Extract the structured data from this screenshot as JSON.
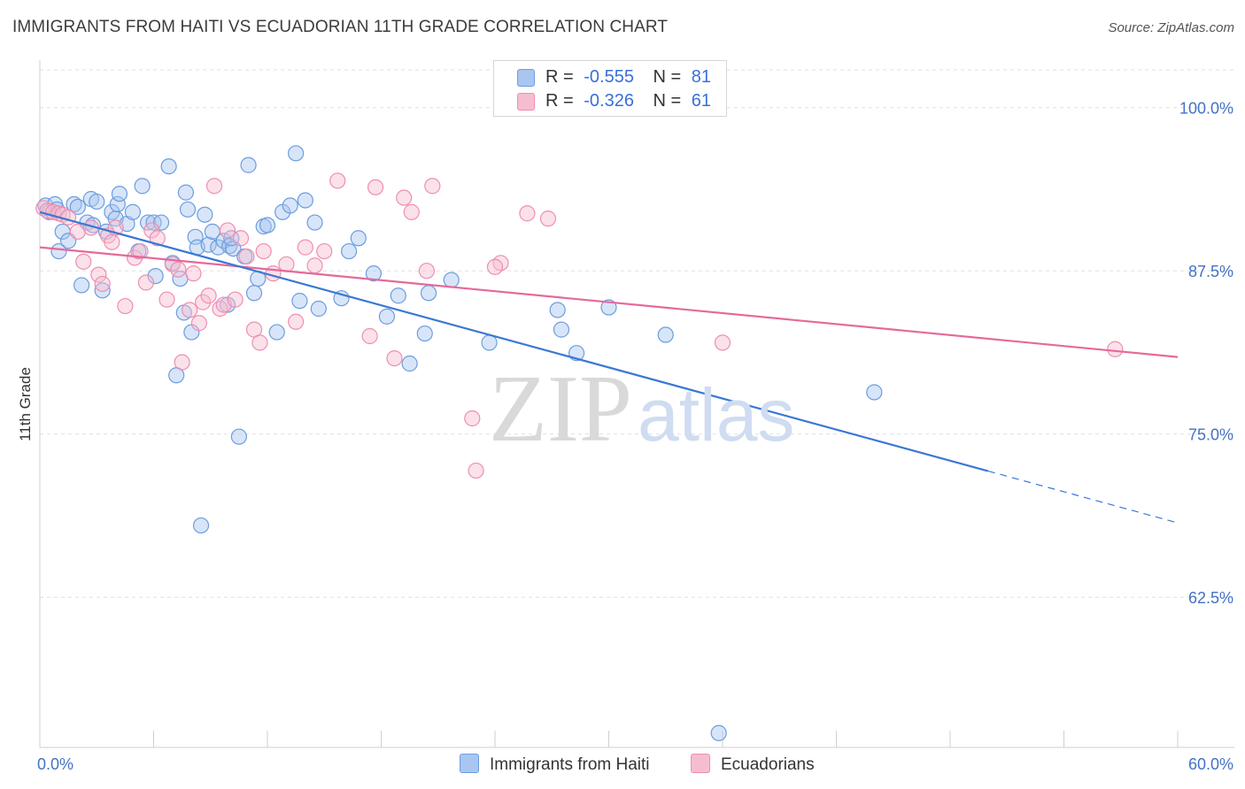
{
  "header": {
    "title": "IMMIGRANTS FROM HAITI VS ECUADORIAN 11TH GRADE CORRELATION CHART",
    "source": "Source: ZipAtlas.com"
  },
  "watermark": {
    "zip": "ZIP",
    "atlas": "atlas"
  },
  "legend": {
    "rows": [
      {
        "r_label": "R =",
        "r_value": "-0.555",
        "n_label": "N =",
        "n_value": "81"
      },
      {
        "r_label": "R =",
        "r_value": "-0.326",
        "n_label": "N =",
        "n_value": "61"
      }
    ]
  },
  "bottom_legend": {
    "haiti": "Immigrants from Haiti",
    "ecuador": "Ecuadorians"
  },
  "colors": {
    "haiti_fill": "#a9c6f0",
    "haiti_stroke": "#6b9de0",
    "haiti_line": "#3a78d4",
    "ecuador_fill": "#f6bdd1",
    "ecuador_stroke": "#ee8fb0",
    "ecuador_line": "#e5699a",
    "grid": "#e0e0e0",
    "axis_text": "#4472c4"
  },
  "chart_data": {
    "type": "scatter",
    "title": "IMMIGRANTS FROM HAITI VS ECUADORIAN 11TH GRADE CORRELATION CHART",
    "xlabel": "",
    "ylabel": "11th Grade",
    "xlim": [
      0,
      60
    ],
    "ylim": [
      51,
      103.5
    ],
    "x_tick_labels": [
      {
        "value": 0,
        "label": "0.0%"
      },
      {
        "value": 60,
        "label": "60.0%"
      }
    ],
    "y_tick_labels": [
      {
        "value": 100,
        "label": "100.0%"
      },
      {
        "value": 87.5,
        "label": "87.5%"
      },
      {
        "value": 75,
        "label": "75.0%"
      },
      {
        "value": 62.5,
        "label": "62.5%"
      }
    ],
    "y_gridlines": [
      100,
      87.5,
      75,
      62.5
    ],
    "x_minor_ticks": [
      0,
      6,
      12,
      18,
      24,
      30,
      36,
      42,
      48,
      54,
      60
    ],
    "series": [
      {
        "name": "Immigrants from Haiti",
        "R": -0.555,
        "N": 81,
        "trend": {
          "x0": 0,
          "y0": 92.0,
          "x1": 60,
          "y1": 68.2,
          "solid_until_x": 50
        },
        "points": [
          [
            0.3,
            92.5
          ],
          [
            0.5,
            92.0
          ],
          [
            0.8,
            92.6
          ],
          [
            0.9,
            92.2
          ],
          [
            1.0,
            89.0
          ],
          [
            1.2,
            90.5
          ],
          [
            1.5,
            89.8
          ],
          [
            1.8,
            92.6
          ],
          [
            2.0,
            92.4
          ],
          [
            2.2,
            86.4
          ],
          [
            2.5,
            91.2
          ],
          [
            2.7,
            93.0
          ],
          [
            2.8,
            91.0
          ],
          [
            3.0,
            92.8
          ],
          [
            3.3,
            86.0
          ],
          [
            3.5,
            90.5
          ],
          [
            3.8,
            92.0
          ],
          [
            4.0,
            91.5
          ],
          [
            4.1,
            92.6
          ],
          [
            4.2,
            93.4
          ],
          [
            4.6,
            91.1
          ],
          [
            4.9,
            92.0
          ],
          [
            5.2,
            89.0
          ],
          [
            5.4,
            94.0
          ],
          [
            5.7,
            91.2
          ],
          [
            6.0,
            91.2
          ],
          [
            6.1,
            87.1
          ],
          [
            6.4,
            91.2
          ],
          [
            6.8,
            95.5
          ],
          [
            7.0,
            88.1
          ],
          [
            7.2,
            79.5
          ],
          [
            7.4,
            86.9
          ],
          [
            7.6,
            84.3
          ],
          [
            7.7,
            93.5
          ],
          [
            7.8,
            92.2
          ],
          [
            8.0,
            82.8
          ],
          [
            8.2,
            90.1
          ],
          [
            8.3,
            89.3
          ],
          [
            8.5,
            68.0
          ],
          [
            8.7,
            91.8
          ],
          [
            8.9,
            89.5
          ],
          [
            9.1,
            90.5
          ],
          [
            9.4,
            89.3
          ],
          [
            9.7,
            89.8
          ],
          [
            9.9,
            84.9
          ],
          [
            10.0,
            89.4
          ],
          [
            10.2,
            89.2
          ],
          [
            10.5,
            74.8
          ],
          [
            10.8,
            88.6
          ],
          [
            11.0,
            95.6
          ],
          [
            11.3,
            85.8
          ],
          [
            11.5,
            86.9
          ],
          [
            11.8,
            90.9
          ],
          [
            12.0,
            91.0
          ],
          [
            12.5,
            82.8
          ],
          [
            12.8,
            92.0
          ],
          [
            13.2,
            92.5
          ],
          [
            13.5,
            96.5
          ],
          [
            13.7,
            85.2
          ],
          [
            14.0,
            92.9
          ],
          [
            14.5,
            91.2
          ],
          [
            14.7,
            84.6
          ],
          [
            15.9,
            85.4
          ],
          [
            16.3,
            89.0
          ],
          [
            16.8,
            90.0
          ],
          [
            17.6,
            87.3
          ],
          [
            18.3,
            84.0
          ],
          [
            18.9,
            85.6
          ],
          [
            19.5,
            80.4
          ],
          [
            20.3,
            82.7
          ],
          [
            20.5,
            85.8
          ],
          [
            21.7,
            86.8
          ],
          [
            23.7,
            82.0
          ],
          [
            27.3,
            84.5
          ],
          [
            27.5,
            83.0
          ],
          [
            28.3,
            81.2
          ],
          [
            30.0,
            84.7
          ],
          [
            33.0,
            82.6
          ],
          [
            35.8,
            52.1
          ],
          [
            44.0,
            78.2
          ],
          [
            10.1,
            90.0
          ]
        ]
      },
      {
        "name": "Ecuadorians",
        "R": -0.326,
        "N": 61,
        "trend": {
          "x0": 0,
          "y0": 89.3,
          "x1": 60,
          "y1": 80.9,
          "solid_until_x": 60
        },
        "points": [
          [
            0.2,
            92.3
          ],
          [
            0.4,
            92.1
          ],
          [
            0.7,
            92.0
          ],
          [
            1.0,
            91.9
          ],
          [
            1.2,
            91.8
          ],
          [
            1.5,
            91.6
          ],
          [
            2.0,
            90.5
          ],
          [
            2.3,
            88.2
          ],
          [
            2.7,
            90.8
          ],
          [
            3.1,
            87.2
          ],
          [
            3.3,
            86.5
          ],
          [
            3.6,
            90.2
          ],
          [
            3.8,
            89.7
          ],
          [
            4.0,
            90.8
          ],
          [
            4.5,
            84.8
          ],
          [
            5.0,
            88.5
          ],
          [
            5.3,
            89.0
          ],
          [
            5.6,
            86.6
          ],
          [
            5.9,
            90.6
          ],
          [
            6.2,
            90.0
          ],
          [
            6.7,
            85.3
          ],
          [
            7.0,
            88.0
          ],
          [
            7.3,
            87.6
          ],
          [
            7.5,
            80.5
          ],
          [
            7.9,
            84.5
          ],
          [
            8.1,
            87.3
          ],
          [
            8.4,
            83.5
          ],
          [
            8.6,
            85.1
          ],
          [
            8.9,
            85.6
          ],
          [
            9.2,
            94.0
          ],
          [
            9.5,
            84.6
          ],
          [
            9.7,
            84.9
          ],
          [
            9.9,
            90.6
          ],
          [
            10.3,
            85.3
          ],
          [
            10.6,
            90.0
          ],
          [
            10.9,
            88.6
          ],
          [
            11.3,
            83.0
          ],
          [
            11.6,
            82.0
          ],
          [
            11.8,
            89.0
          ],
          [
            12.3,
            87.3
          ],
          [
            13.0,
            88.0
          ],
          [
            13.5,
            83.6
          ],
          [
            14.0,
            89.3
          ],
          [
            14.5,
            87.9
          ],
          [
            15.0,
            89.0
          ],
          [
            15.7,
            94.4
          ],
          [
            17.4,
            82.5
          ],
          [
            17.7,
            93.9
          ],
          [
            18.7,
            80.8
          ],
          [
            19.2,
            93.1
          ],
          [
            19.6,
            92.0
          ],
          [
            20.4,
            87.5
          ],
          [
            20.7,
            94.0
          ],
          [
            22.8,
            76.2
          ],
          [
            23.0,
            72.2
          ],
          [
            24.3,
            88.1
          ],
          [
            25.7,
            91.9
          ],
          [
            26.8,
            91.5
          ],
          [
            36.0,
            82.0
          ],
          [
            56.7,
            81.5
          ],
          [
            24.0,
            87.8
          ]
        ]
      }
    ]
  }
}
